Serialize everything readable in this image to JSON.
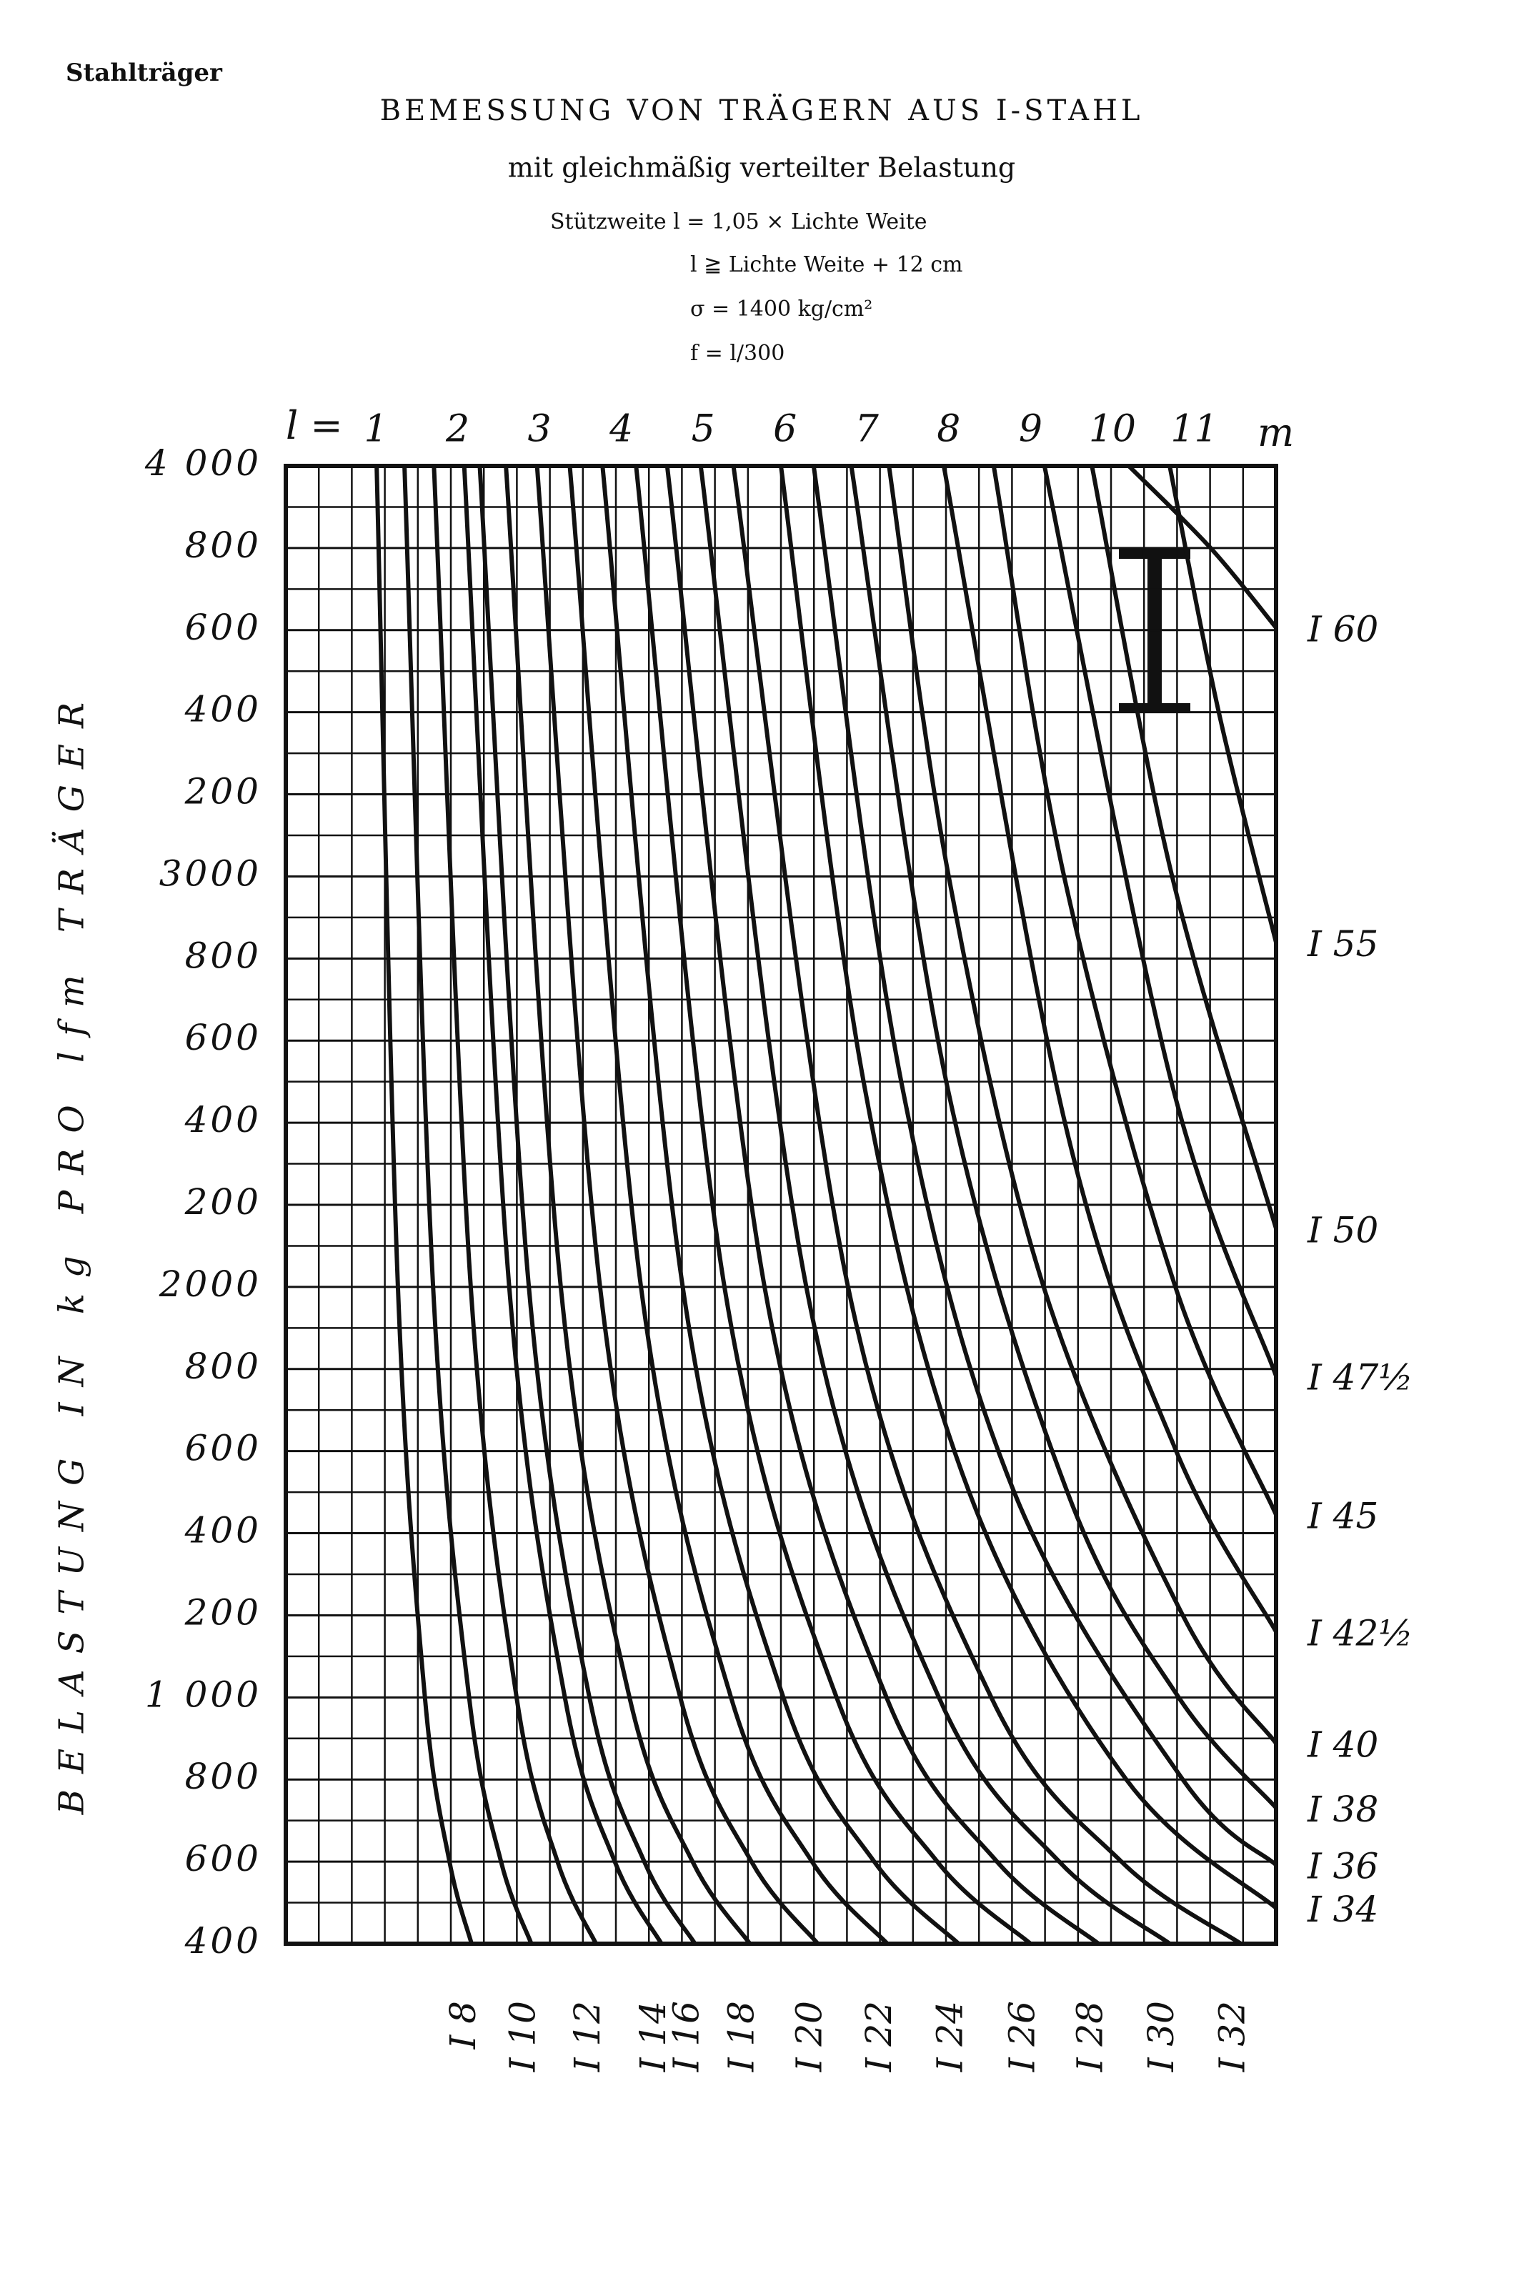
{
  "chart_data": {
    "type": "line",
    "header": "Stahlträger",
    "title": "BEMESSUNG VON TRÄGERN AUS I-STAHL",
    "subtitle": "mit gleichmäßig verteilter Belastung",
    "notes": [
      "Stützweite  l = 1,05 × Lichte Weite",
      "l ≧ Lichte Weite + 12 cm",
      "σ = 1400 kg/cm²",
      "f = l/300"
    ],
    "x_label": "l =",
    "x_unit": "m",
    "y_label": "BELASTUNG IN kg PRO lfm TRÄGER",
    "color": "#111111",
    "grid": true,
    "xlim": [
      -0.1,
      12
    ],
    "xticks": [
      1,
      2,
      3,
      4,
      5,
      6,
      7,
      8,
      9,
      10,
      11
    ],
    "ylim": [
      400,
      4000
    ],
    "yticks": [
      400,
      600,
      800,
      {
        "value": 1000,
        "label": "1 000"
      },
      {
        "value": 1200,
        "label": "200"
      },
      {
        "value": 1400,
        "label": "400"
      },
      {
        "value": 1600,
        "label": "600"
      },
      {
        "value": 1800,
        "label": "800"
      },
      2000,
      {
        "value": 2200,
        "label": "200"
      },
      {
        "value": 2400,
        "label": "400"
      },
      {
        "value": 2600,
        "label": "600"
      },
      {
        "value": 2800,
        "label": "800"
      },
      3000,
      {
        "value": 3200,
        "label": "200"
      },
      {
        "value": 3400,
        "label": "400"
      },
      {
        "value": 3600,
        "label": "600"
      },
      {
        "value": 3800,
        "label": "800"
      },
      {
        "value": 4000,
        "label": "4 000"
      }
    ],
    "series": [
      {
        "name": "I 8",
        "x": [
          2.17,
          1.9,
          1.6,
          1.27,
          1.01
        ],
        "values": [
          400,
          600,
          1000,
          2000,
          4000
        ]
      },
      {
        "name": "I 10",
        "x": [
          2.9,
          2.53,
          2.14,
          1.7,
          1.35
        ],
        "values": [
          400,
          600,
          1000,
          2000,
          4000
        ]
      },
      {
        "name": "I 12",
        "x": [
          3.69,
          3.22,
          2.72,
          2.16,
          1.71
        ],
        "values": [
          400,
          600,
          1000,
          2000,
          4000
        ]
      },
      {
        "name": "I 14",
        "x": [
          4.49,
          3.92,
          3.31,
          2.63,
          2.08
        ],
        "values": [
          400,
          600,
          1000,
          2000,
          4000
        ]
      },
      {
        "name": "I 16",
        "x": [
          4.9,
          4.28,
          3.61,
          2.87,
          2.27
        ],
        "values": [
          400,
          600,
          1000,
          2000,
          4000
        ]
      },
      {
        "name": "I 18",
        "x": [
          5.57,
          4.87,
          4.1,
          3.26,
          2.59
        ],
        "values": [
          400,
          600,
          1000,
          2000,
          4000
        ]
      },
      {
        "name": "I 20",
        "x": [
          6.4,
          5.59,
          4.72,
          3.74,
          2.97
        ],
        "values": [
          400,
          600,
          1000,
          2000,
          4000
        ]
      },
      {
        "name": "I 22",
        "x": [
          7.25,
          6.33,
          5.34,
          4.24,
          3.37
        ],
        "values": [
          400,
          600,
          1000,
          2000,
          4000
        ]
      },
      {
        "name": "I 24",
        "x": [
          8.12,
          7.09,
          5.98,
          4.75,
          3.77
        ],
        "values": [
          400,
          600,
          1000,
          2000,
          4000
        ]
      },
      {
        "name": "I 26",
        "x": [
          9.0,
          7.86,
          6.63,
          5.26,
          4.18
        ],
        "values": [
          400,
          600,
          1000,
          2000,
          4000
        ]
      },
      {
        "name": "I 28",
        "x": [
          9.83,
          8.59,
          7.24,
          5.75,
          4.56
        ],
        "values": [
          400,
          600,
          1000,
          2000,
          4000
        ]
      },
      {
        "name": "I 30",
        "x": [
          10.7,
          9.35,
          7.88,
          6.26,
          4.97
        ],
        "values": [
          400,
          600,
          1000,
          2000,
          4000
        ]
      },
      {
        "name": "I 32",
        "x": [
          11.57,
          10.11,
          8.52,
          6.77,
          5.37
        ],
        "values": [
          400,
          600,
          1000,
          2000,
          4000
        ]
      },
      {
        "name": "I 34",
        "x": [
          12,
          10.17,
          8.25,
          6.96,
          5.95
        ],
        "values": [
          487,
          800,
          1500,
          2500,
          4000
        ]
      },
      {
        "name": "I 36",
        "x": [
          12,
          10.86,
          8.8,
          7.42,
          6.35
        ],
        "values": [
          592,
          800,
          1500,
          2500,
          4000
        ]
      },
      {
        "name": "I 38",
        "x": [
          12,
          10.81,
          9.45,
          7.97,
          6.81
        ],
        "values": [
          731,
          1000,
          1500,
          2500,
          4000
        ]
      },
      {
        "name": "I 40",
        "x": [
          12,
          10.86,
          9.16,
          8.0,
          7.27
        ],
        "values": [
          888,
          1200,
          2000,
          3000,
          4000
        ]
      },
      {
        "name": "I 42½",
        "x": [
          12,
          10.78,
          9.42,
          7.94
        ],
        "values": [
          1160,
          1600,
          2400,
          4000
        ]
      },
      {
        "name": "I 45",
        "x": [
          12,
          10.77,
          9.41,
          8.55
        ],
        "values": [
          1445,
          2000,
          3000,
          4000
        ]
      },
      {
        "name": "I 47½",
        "x": [
          12,
          10.72,
          9.17
        ],
        "values": [
          1783,
          2500,
          4000
        ]
      },
      {
        "name": "I 50",
        "x": [
          12,
          10.73,
          9.75
        ],
        "values": [
          2142,
          3000,
          4000
        ]
      },
      {
        "name": "I 55",
        "x": [
          12,
          11.3,
          10.7
        ],
        "values": [
          2839,
          3400,
          4000
        ]
      },
      {
        "name": "I 60",
        "x": [
          12,
          11.2,
          10.2
        ],
        "values": [
          3606,
          3800,
          4000
        ]
      }
    ]
  }
}
